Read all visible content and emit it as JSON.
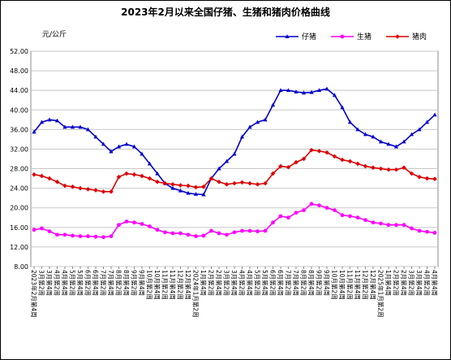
{
  "chart_data": {
    "type": "line",
    "title": "2023年2月以来全国仔猪、生猪和猪肉价格曲线",
    "y_label": "元/公斤",
    "categories": [
      "2023年2月第4周",
      "3月第2周",
      "3月第4周",
      "4月第2周",
      "4月第4周",
      "5月第2周",
      "5月第4周",
      "6月第2周",
      "6月第4周",
      "7月第2周",
      "7月第4周",
      "8月第2周",
      "8月第4周",
      "9月第2周",
      "9月第4周",
      "10月第2周",
      "10月第4周",
      "11月第2周",
      "11月第4周",
      "12月第2周",
      "12月第4周",
      "2024年1月第2周",
      "1月第4周",
      "2月第2周",
      "2月第4周",
      "3月第2周",
      "3月第4周",
      "4月第2周",
      "4月第4周",
      "5月第2周",
      "5月第4周",
      "6月第2周",
      "6月第4周",
      "7月第2周",
      "7月第4周",
      "8月第2周",
      "8月第4周",
      "9月第2周",
      "9月第4周",
      "10月第2周",
      "10月第4周",
      "11月第2周",
      "11月第4周",
      "12月第2周",
      "12月第4周",
      "2025年1月第2周",
      "1月第4周",
      "2月第2周",
      "2月第4周",
      "3月第2周",
      "3月第4周",
      "4月第2周",
      "4月第4周"
    ],
    "series": [
      {
        "name": "仔猪",
        "color": "#0000cc",
        "marker": "triangle",
        "values": [
          35.5,
          37.5,
          38,
          37.8,
          36.5,
          36.5,
          36.5,
          36,
          34.5,
          33,
          31.5,
          32.5,
          33,
          32.5,
          31,
          29,
          27,
          25,
          24,
          23.5,
          23,
          22.8,
          22.7,
          26,
          28,
          29.5,
          31,
          34.5,
          36.5,
          37.5,
          38,
          41,
          44,
          44,
          43.7,
          43.5,
          43.6,
          44,
          44.3,
          43,
          40.5,
          37.5,
          36,
          35,
          34.5,
          33.5,
          33,
          32.5,
          33.5,
          35,
          36,
          37.5,
          39
        ]
      },
      {
        "name": "生猪",
        "color": "#ff00ff",
        "marker": "circle",
        "values": [
          15.5,
          15.8,
          15.2,
          14.5,
          14.5,
          14.3,
          14.2,
          14.2,
          14.1,
          14,
          14.2,
          16.5,
          17.2,
          17,
          16.7,
          16.2,
          15.5,
          15,
          14.8,
          14.8,
          14.5,
          14.2,
          14.3,
          15.3,
          14.8,
          14.5,
          15,
          15.3,
          15.3,
          15.2,
          15.3,
          17,
          18.3,
          18,
          19,
          19.5,
          20.8,
          20.5,
          20,
          19.5,
          18.5,
          18.3,
          18,
          17.5,
          17,
          16.8,
          16.5,
          16.5,
          16.5,
          15.8,
          15.3,
          15.1,
          14.9
        ]
      },
      {
        "name": "猪肉",
        "color": "#dd0000",
        "marker": "diamond",
        "values": [
          26.8,
          26.5,
          26,
          25.3,
          24.5,
          24.3,
          24,
          23.8,
          23.6,
          23.3,
          23.3,
          26.3,
          27,
          26.8,
          26.5,
          26,
          25.3,
          25,
          24.8,
          24.6,
          24.5,
          24.2,
          24.3,
          26,
          25.3,
          24.8,
          25,
          25.2,
          25,
          24.8,
          25,
          27,
          28.5,
          28.3,
          29.3,
          30,
          31.8,
          31.6,
          31.3,
          30.5,
          29.8,
          29.5,
          29,
          28.5,
          28.2,
          28,
          27.8,
          27.8,
          28.2,
          27,
          26.3,
          26,
          25.9
        ]
      }
    ],
    "ylim": [
      8,
      52
    ],
    "yticks": [
      {
        "value": 8,
        "label": "8.00"
      },
      {
        "value": 12,
        "label": "12.00"
      },
      {
        "value": 16,
        "label": "16.00"
      },
      {
        "value": 20,
        "label": "20.00"
      },
      {
        "value": 24,
        "label": "24.00"
      },
      {
        "value": 28,
        "label": "28.00"
      },
      {
        "value": 32,
        "label": "32.00"
      },
      {
        "value": 36,
        "label": "36.00"
      },
      {
        "value": 40,
        "label": "40.00"
      },
      {
        "value": 44,
        "label": "44.00"
      },
      {
        "value": 48,
        "label": "48.00"
      },
      {
        "value": 52,
        "label": "52.00"
      }
    ],
    "grid": true,
    "legend": "top-right"
  }
}
